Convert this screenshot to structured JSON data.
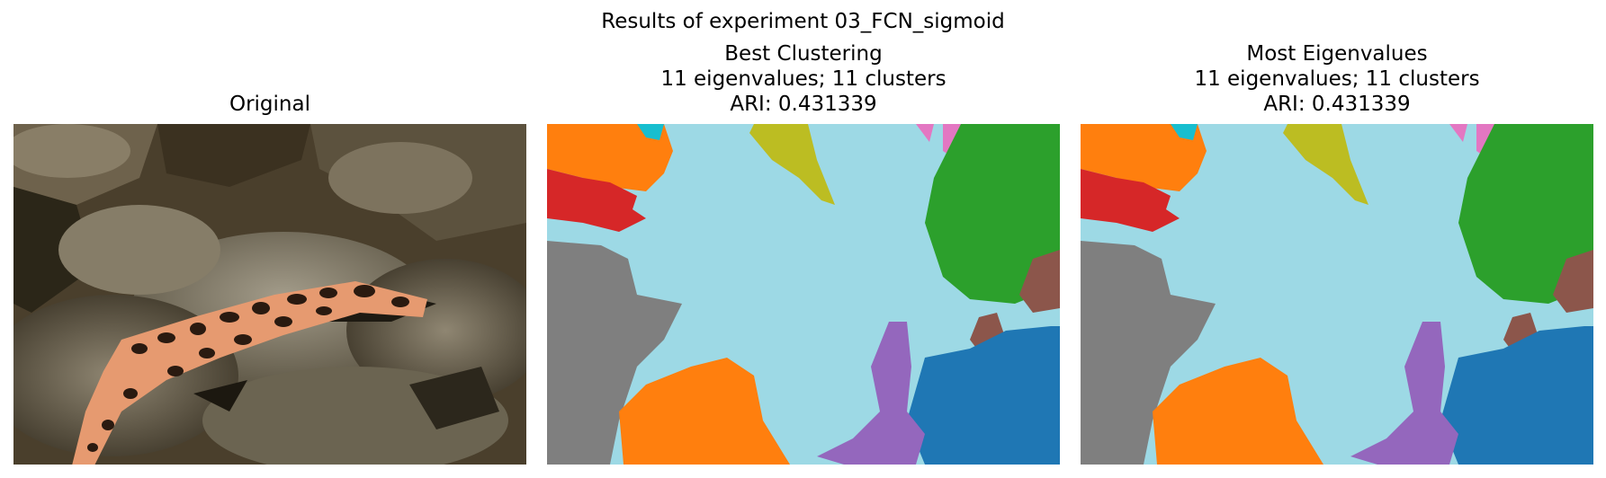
{
  "figure": {
    "title": "Results of experiment 03_FCN_sigmoid"
  },
  "panels": [
    {
      "title_lines": [
        "Original"
      ],
      "kind": "photo"
    },
    {
      "title_lines": [
        "Best Clustering",
        "11 eigenvalues; 11 clusters",
        "ARI: 0.431339"
      ],
      "kind": "segmentation"
    },
    {
      "title_lines": [
        "Most Eigenvalues",
        "11 eigenvalues; 11 clusters",
        "ARI: 0.431339"
      ],
      "kind": "segmentation"
    }
  ],
  "palette": {
    "background": "#9dd9e5",
    "orange": "#ff7f0e",
    "red": "#d62728",
    "gray": "#7f7f7f",
    "green": "#2ca02c",
    "blue": "#1f77b4",
    "purple": "#9467bd",
    "olive": "#bcbd22",
    "pink": "#e377c2",
    "brown": "#8c564b",
    "cyan": "#17becf"
  }
}
